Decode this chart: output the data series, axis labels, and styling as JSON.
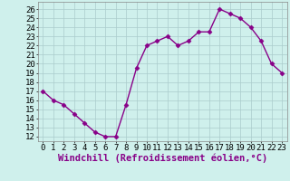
{
  "x": [
    0,
    1,
    2,
    3,
    4,
    5,
    6,
    7,
    8,
    9,
    10,
    11,
    12,
    13,
    14,
    15,
    16,
    17,
    18,
    19,
    20,
    21,
    22,
    23
  ],
  "y": [
    17,
    16,
    15.5,
    14.5,
    13.5,
    12.5,
    12,
    12,
    15.5,
    19.5,
    22,
    22.5,
    23,
    22,
    22.5,
    23.5,
    23.5,
    26,
    25.5,
    25,
    24,
    22.5,
    20,
    19
  ],
  "line_color": "#880088",
  "marker": "D",
  "marker_size": 2.5,
  "bg_color": "#cff0ec",
  "grid_color": "#aacccc",
  "xlabel": "Windchill (Refroidissement éolien,°C)",
  "xlabel_fontsize": 7.5,
  "tick_fontsize": 6.5,
  "ylim": [
    11.5,
    26.8
  ],
  "xlim": [
    -0.5,
    23.5
  ],
  "yticks": [
    12,
    13,
    14,
    15,
    16,
    17,
    18,
    19,
    20,
    21,
    22,
    23,
    24,
    25,
    26
  ],
  "xticks": [
    0,
    1,
    2,
    3,
    4,
    5,
    6,
    7,
    8,
    9,
    10,
    11,
    12,
    13,
    14,
    15,
    16,
    17,
    18,
    19,
    20,
    21,
    22,
    23
  ],
  "linewidth": 1.0
}
